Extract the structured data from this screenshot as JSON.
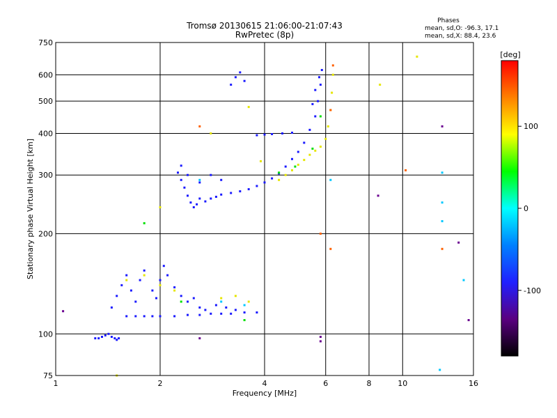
{
  "chart_data": {
    "type": "scatter",
    "title": "Tromsø 20130615 21:06:00-21:07:43",
    "subtitle": "RwPretec (8p)",
    "xlabel": "Frequency [MHz]",
    "ylabel": "Stationary phase Virtual Height [km]",
    "x_scale": "log",
    "y_scale": "log",
    "xlim": [
      1,
      16
    ],
    "ylim": [
      75,
      750
    ],
    "x_ticks": [
      1,
      2,
      4,
      6,
      8,
      10,
      16
    ],
    "x_tick_labels": [
      "1",
      "2",
      "4",
      "6",
      "8",
      "10",
      "16"
    ],
    "y_ticks": [
      75,
      100,
      200,
      300,
      400,
      500,
      600,
      750
    ],
    "y_tick_labels": [
      "75",
      "100",
      "200",
      "300",
      "400",
      "500",
      "600",
      "750"
    ],
    "grid": true,
    "phases_box": {
      "heading": "Phases",
      "line_O": "mean, sd,O:  -96.3, 17.1",
      "line_X": "mean, sd,X:  88.4, 23.6"
    },
    "colorbar": {
      "label": "[deg]",
      "range": [
        -180,
        180
      ],
      "ticks": [
        100,
        0,
        -100
      ],
      "tick_labels": [
        "100",
        "0",
        "-100"
      ],
      "colormap": [
        "#000000",
        "#5a0080",
        "#2020ff",
        "#0080ff",
        "#00ffff",
        "#00ff00",
        "#ffff00",
        "#ff8000",
        "#ff0000"
      ]
    },
    "series": [
      {
        "mode": "O",
        "phase_deg": -100,
        "color": "#1a1aff",
        "points": [
          [
            1.3,
            97
          ],
          [
            1.33,
            97
          ],
          [
            1.36,
            98
          ],
          [
            1.39,
            99
          ],
          [
            1.42,
            100
          ],
          [
            1.45,
            98
          ],
          [
            1.48,
            97
          ],
          [
            1.5,
            96
          ],
          [
            1.52,
            97
          ],
          [
            1.6,
            113
          ],
          [
            1.7,
            113
          ],
          [
            1.8,
            113
          ],
          [
            1.9,
            113
          ],
          [
            2.0,
            113
          ],
          [
            2.2,
            113
          ],
          [
            2.4,
            114
          ],
          [
            2.6,
            114
          ],
          [
            2.8,
            115
          ],
          [
            3.0,
            115
          ],
          [
            3.2,
            115
          ],
          [
            3.5,
            116
          ],
          [
            3.8,
            116
          ],
          [
            1.45,
            120
          ],
          [
            1.5,
            130
          ],
          [
            1.55,
            140
          ],
          [
            1.6,
            150
          ],
          [
            1.65,
            135
          ],
          [
            1.7,
            125
          ],
          [
            1.75,
            145
          ],
          [
            1.8,
            155
          ],
          [
            1.9,
            135
          ],
          [
            1.95,
            128
          ],
          [
            2.0,
            145
          ],
          [
            2.05,
            160
          ],
          [
            2.1,
            150
          ],
          [
            2.2,
            138
          ],
          [
            2.3,
            130
          ],
          [
            2.4,
            125
          ],
          [
            2.5,
            128
          ],
          [
            2.6,
            120
          ],
          [
            2.7,
            118
          ],
          [
            2.9,
            122
          ],
          [
            3.1,
            120
          ],
          [
            3.3,
            118
          ],
          [
            2.25,
            305
          ],
          [
            2.3,
            290
          ],
          [
            2.35,
            275
          ],
          [
            2.4,
            260
          ],
          [
            2.45,
            248
          ],
          [
            2.5,
            240
          ],
          [
            2.55,
            245
          ],
          [
            2.6,
            255
          ],
          [
            2.7,
            250
          ],
          [
            2.8,
            255
          ],
          [
            2.9,
            258
          ],
          [
            3.0,
            262
          ],
          [
            3.2,
            265
          ],
          [
            3.4,
            268
          ],
          [
            3.6,
            272
          ],
          [
            3.8,
            278
          ],
          [
            4.0,
            285
          ],
          [
            4.2,
            293
          ],
          [
            4.4,
            303
          ],
          [
            4.6,
            318
          ],
          [
            4.8,
            335
          ],
          [
            5.0,
            352
          ],
          [
            5.2,
            375
          ],
          [
            5.4,
            410
          ],
          [
            5.6,
            450
          ],
          [
            5.7,
            500
          ],
          [
            5.8,
            560
          ],
          [
            5.85,
            620
          ],
          [
            3.8,
            395
          ],
          [
            4.0,
            397
          ],
          [
            4.2,
            398
          ],
          [
            4.5,
            400
          ],
          [
            4.8,
            402
          ],
          [
            3.2,
            560
          ],
          [
            3.3,
            590
          ],
          [
            3.4,
            610
          ],
          [
            3.5,
            575
          ],
          [
            2.3,
            320
          ],
          [
            2.4,
            300
          ],
          [
            2.6,
            285
          ],
          [
            2.8,
            300
          ],
          [
            3.0,
            290
          ],
          [
            5.5,
            490
          ],
          [
            5.6,
            540
          ],
          [
            5.75,
            590
          ]
        ]
      },
      {
        "mode": "X",
        "phase_deg": 90,
        "color": "#e6e600",
        "points": [
          [
            4.6,
            300
          ],
          [
            4.8,
            310
          ],
          [
            5.0,
            322
          ],
          [
            5.2,
            333
          ],
          [
            5.4,
            345
          ],
          [
            5.6,
            355
          ],
          [
            5.8,
            365
          ],
          [
            6.0,
            385
          ],
          [
            6.1,
            420
          ],
          [
            6.2,
            470
          ],
          [
            6.25,
            530
          ],
          [
            6.3,
            600
          ],
          [
            1.6,
            145
          ],
          [
            1.8,
            150
          ],
          [
            2.0,
            140
          ],
          [
            2.2,
            135
          ],
          [
            3.0,
            128
          ],
          [
            3.3,
            130
          ],
          [
            3.6,
            125
          ],
          [
            3.6,
            480
          ],
          [
            3.9,
            330
          ],
          [
            4.4,
            290
          ],
          [
            2.8,
            400
          ],
          [
            2.0,
            240
          ],
          [
            1.5,
            75
          ],
          [
            8.6,
            560
          ],
          [
            11.0,
            680
          ]
        ]
      },
      {
        "mode": "other",
        "phase_deg": 30,
        "color": "#00e000",
        "points": [
          [
            4.4,
            305
          ],
          [
            4.9,
            318
          ],
          [
            5.5,
            360
          ],
          [
            5.8,
            450
          ],
          [
            1.8,
            215
          ],
          [
            2.3,
            125
          ],
          [
            3.5,
            110
          ]
        ]
      },
      {
        "mode": "other",
        "phase_deg": 150,
        "color": "#ff6000",
        "points": [
          [
            6.3,
            640
          ],
          [
            6.2,
            470
          ],
          [
            5.8,
            200
          ],
          [
            2.6,
            420
          ],
          [
            10.2,
            310
          ],
          [
            13.0,
            180
          ],
          [
            6.2,
            180
          ]
        ]
      },
      {
        "mode": "other",
        "phase_deg": -60,
        "color": "#00c8ff",
        "points": [
          [
            2.6,
            290
          ],
          [
            3.0,
            125
          ],
          [
            3.5,
            122
          ],
          [
            6.2,
            290
          ],
          [
            13.0,
            305
          ],
          [
            13.0,
            248
          ],
          [
            13.0,
            218
          ],
          [
            15.0,
            145
          ],
          [
            12.8,
            78
          ]
        ]
      },
      {
        "mode": "other",
        "phase_deg": -140,
        "color": "#6a0090",
        "points": [
          [
            5.8,
            95
          ],
          [
            5.8,
            98
          ],
          [
            8.5,
            260
          ],
          [
            13.0,
            420
          ],
          [
            14.5,
            188
          ],
          [
            15.5,
            110
          ],
          [
            2.6,
            97
          ],
          [
            1.05,
            117
          ]
        ]
      }
    ]
  }
}
